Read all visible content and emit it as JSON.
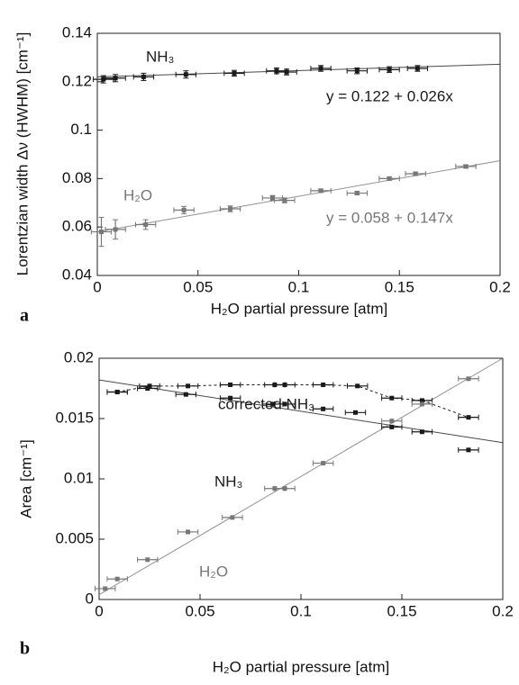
{
  "chart_data": [
    {
      "type": "scatter",
      "panel": "a",
      "xlabel": "H₂O partial pressure [atm]",
      "ylabel": "Lorentzian width Δν (HWHM) [cm⁻¹]",
      "xlim": [
        0,
        0.2
      ],
      "xticks": [
        0,
        0.05,
        0.1,
        0.15,
        0.2
      ],
      "ylim": [
        0.04,
        0.14
      ],
      "yticks": [
        0.04,
        0.06,
        0.08,
        0.1,
        0.12,
        0.14
      ],
      "series": [
        {
          "name": "NH₃",
          "color": "#1a1a1a",
          "x": [
            0.003,
            0.009,
            0.023,
            0.044,
            0.068,
            0.089,
            0.094,
            0.111,
            0.129,
            0.145,
            0.159
          ],
          "values": [
            0.121,
            0.1215,
            0.122,
            0.123,
            0.1235,
            0.1245,
            0.124,
            0.1255,
            0.1245,
            0.125,
            0.1255
          ],
          "xerr": 0.005,
          "yerr": [
            0.0015,
            0.0015,
            0.0015,
            0.0015,
            0.0012,
            0.0012,
            0.0012,
            0.0012,
            0.0012,
            0.0012,
            0.0012
          ]
        },
        {
          "name": "H₂O",
          "color": "#777777",
          "x": [
            0.002,
            0.009,
            0.024,
            0.043,
            0.066,
            0.087,
            0.093,
            0.111,
            0.129,
            0.145,
            0.158,
            0.183
          ],
          "values": [
            0.058,
            0.059,
            0.061,
            0.067,
            0.0675,
            0.072,
            0.071,
            0.075,
            0.074,
            0.08,
            0.082,
            0.085
          ],
          "xerr": 0.005,
          "yerr": [
            0.006,
            0.004,
            0.002,
            0.0015,
            0.0012,
            0.001,
            0.001,
            0.0007,
            0.0007,
            0.0007,
            0.0007,
            0.0006
          ]
        }
      ],
      "fits": [
        {
          "intercept": 0.122,
          "slope": 0.026,
          "label": "y = 0.122 + 0.026x",
          "color": "#1a1a1a"
        },
        {
          "intercept": 0.058,
          "slope": 0.147,
          "label": "y = 0.058 + 0.147x",
          "color": "#777777"
        }
      ]
    },
    {
      "type": "scatter",
      "panel": "b",
      "xlabel": "H₂O partial pressure [atm]",
      "ylabel": "Area [cm⁻¹]",
      "xlim": [
        0,
        0.2
      ],
      "xticks": [
        0,
        0.05,
        0.1,
        0.15,
        0.2
      ],
      "ylim": [
        0,
        0.02
      ],
      "yticks": [
        0,
        0.005,
        0.01,
        0.015,
        0.02
      ],
      "series": [
        {
          "name": "corrected NH₃",
          "color": "#1a1a1a",
          "dashed": true,
          "x": [
            0.009,
            0.025,
            0.044,
            0.065,
            0.087,
            0.092,
            0.111,
            0.128,
            0.145,
            0.16,
            0.183
          ],
          "values": [
            0.0172,
            0.0177,
            0.0177,
            0.0178,
            0.0178,
            0.0178,
            0.0178,
            0.0177,
            0.0167,
            0.0165,
            0.0151
          ],
          "xerr": 0.005
        },
        {
          "name": "NH₃",
          "color": "#1a1a1a",
          "x": [
            0.009,
            0.024,
            0.043,
            0.065,
            0.086,
            0.092,
            0.111,
            0.127,
            0.145,
            0.16,
            0.183
          ],
          "values": [
            0.0172,
            0.0175,
            0.017,
            0.0167,
            0.0162,
            0.0162,
            0.0158,
            0.0155,
            0.0143,
            0.0139,
            0.0124
          ],
          "xerr": 0.005
        },
        {
          "name": "H₂O",
          "color": "#777777",
          "x": [
            0.003,
            0.009,
            0.024,
            0.044,
            0.066,
            0.087,
            0.092,
            0.111,
            0.145,
            0.16,
            0.183
          ],
          "values": [
            0.0009,
            0.0017,
            0.0033,
            0.0056,
            0.0068,
            0.0092,
            0.0092,
            0.0113,
            0.0148,
            0.0162,
            0.0183
          ],
          "xerr": 0.005
        }
      ],
      "fits": [
        {
          "intercept": 0.0182,
          "slope": -0.026,
          "color": "#1a1a1a"
        },
        {
          "intercept": 0.0004,
          "slope": 0.098,
          "color": "#777777"
        }
      ]
    }
  ]
}
